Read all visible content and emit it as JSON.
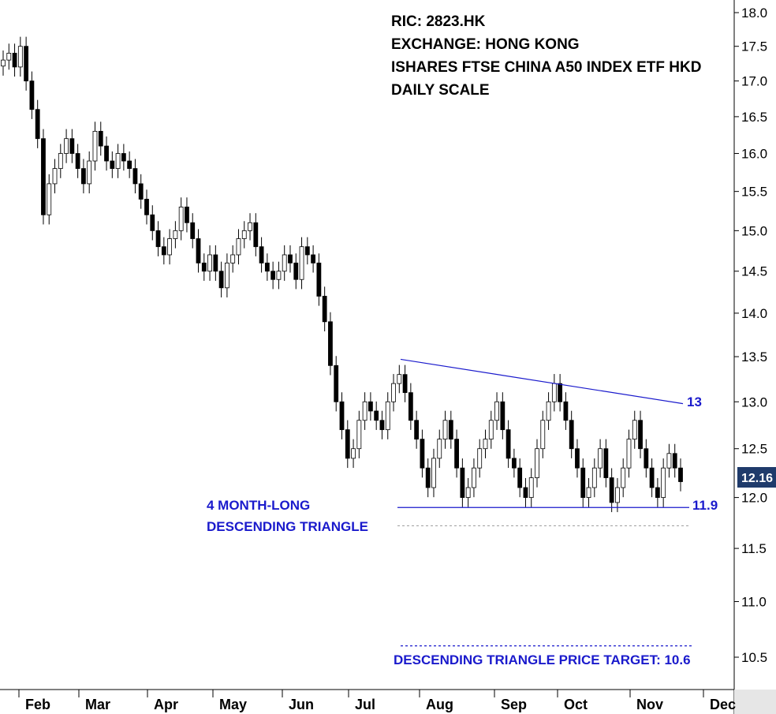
{
  "chart_data": {
    "type": "candlestick",
    "title_lines": [
      "RIC: 2823.HK",
      "EXCHANGE: HONG KONG",
      "ISHARES FTSE CHINA A50 INDEX ETF HKD",
      "DAILY SCALE"
    ],
    "y_ticks": [
      "18.0",
      "17.5",
      "17.0",
      "16.5",
      "16.0",
      "15.5",
      "15.0",
      "14.5",
      "14.0",
      "13.5",
      "13.0",
      "12.5",
      "12.0",
      "11.5",
      "11.0",
      "10.5"
    ],
    "y_scale": "log",
    "x_months": [
      "Feb",
      "Mar",
      "Apr",
      "May",
      "Jun",
      "Jul",
      "Aug",
      "Sep",
      "Oct",
      "Nov",
      "Dec"
    ],
    "last_price": "12.16",
    "resistance_line": {
      "start_date": "Jul 20",
      "start_value": 13.47,
      "end_date": "Nov 27",
      "end_value": 12.98,
      "label": "13"
    },
    "support_line": {
      "start_date": "Jul 20",
      "end_date": "Nov 27",
      "value": 11.9,
      "label": "11.9"
    },
    "reference_dotted_value": 11.72,
    "target_line": {
      "value": 10.6
    },
    "annotations": {
      "pattern_line1": "4 MONTH-LONG",
      "pattern_line2": "DESCENDING TRIANGLE",
      "target_text": "DESCENDING TRIANGLE PRICE TARGET: 10.6"
    },
    "closes": [
      17.3,
      17.4,
      17.2,
      17.5,
      17.0,
      16.6,
      16.2,
      15.2,
      15.6,
      15.8,
      16.0,
      16.2,
      16.0,
      15.8,
      15.6,
      15.9,
      16.3,
      16.1,
      15.9,
      15.8,
      16.0,
      15.9,
      15.8,
      15.6,
      15.4,
      15.2,
      15.0,
      14.8,
      14.7,
      14.9,
      15.0,
      15.3,
      15.1,
      14.9,
      14.6,
      14.5,
      14.7,
      14.5,
      14.3,
      14.6,
      14.7,
      14.9,
      15.0,
      15.1,
      14.8,
      14.6,
      14.5,
      14.4,
      14.5,
      14.7,
      14.6,
      14.4,
      14.8,
      14.7,
      14.6,
      14.2,
      13.9,
      13.4,
      13.0,
      12.7,
      12.4,
      12.5,
      12.8,
      13.0,
      12.9,
      12.8,
      12.7,
      13.0,
      13.2,
      13.3,
      13.1,
      12.8,
      12.6,
      12.3,
      12.1,
      12.4,
      12.6,
      12.8,
      12.6,
      12.3,
      12.0,
      12.1,
      12.3,
      12.5,
      12.6,
      12.8,
      13.0,
      12.7,
      12.4,
      12.3,
      12.1,
      12.0,
      12.2,
      12.5,
      12.8,
      13.0,
      13.2,
      13.0,
      12.8,
      12.5,
      12.3,
      12.0,
      12.1,
      12.3,
      12.5,
      12.2,
      11.95,
      12.1,
      12.3,
      12.6,
      12.8,
      12.5,
      12.3,
      12.1,
      12.0,
      12.3,
      12.45,
      12.3,
      12.16
    ]
  }
}
